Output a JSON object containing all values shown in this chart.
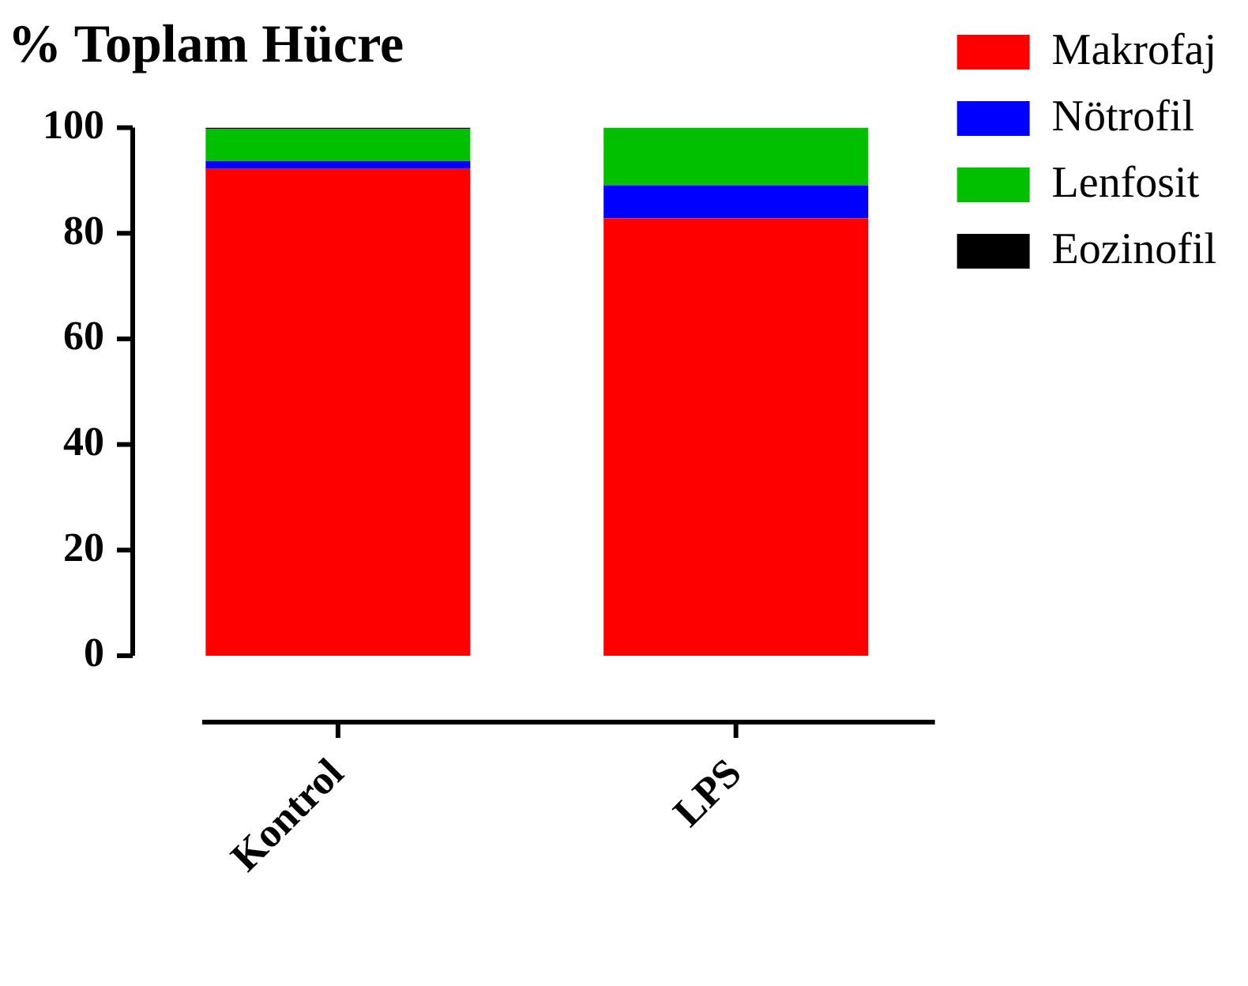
{
  "chart_data": {
    "type": "bar",
    "title": "% Toplam Hücre",
    "categories": [
      "Kontrol",
      "LPS"
    ],
    "stacked": true,
    "ylim": [
      0,
      100
    ],
    "yticks": [
      0,
      20,
      40,
      60,
      80,
      100
    ],
    "grid": false,
    "legend": "right",
    "series": [
      {
        "name": "Makrofaj",
        "color": "#ff0000",
        "values": [
          92.2,
          82.8
        ]
      },
      {
        "name": "Nötrofil",
        "color": "#0000ff",
        "values": [
          1.5,
          6.3
        ]
      },
      {
        "name": "Lenfosit",
        "color": "#00c000",
        "values": [
          6.0,
          10.9
        ]
      },
      {
        "name": "Eozinofil",
        "color": "#000000",
        "values": [
          0.3,
          0
        ]
      }
    ]
  }
}
